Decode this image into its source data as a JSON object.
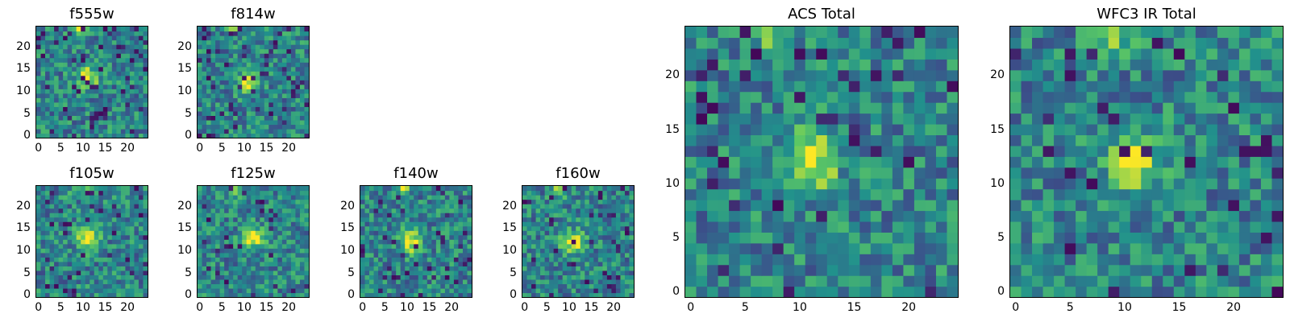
{
  "figure": {
    "colormap": [
      "#440154",
      "#3b528b",
      "#21918c",
      "#5ec962",
      "#fde725"
    ],
    "background": "#ffffff"
  },
  "chart_data": [
    {
      "type": "heatmap",
      "title": "f555w",
      "grid": false,
      "xlim": [
        -0.5,
        24.5
      ],
      "ylim": [
        -0.5,
        24.5
      ],
      "xticks": [
        "0",
        "5",
        "10",
        "15",
        "20"
      ],
      "yticks": [
        "0",
        "5",
        "10",
        "15",
        "20"
      ],
      "features": {
        "peak": [
          11,
          13
        ],
        "hot_spots": [
          [
            9,
            24
          ]
        ],
        "cold_fraction": 0.08
      }
    },
    {
      "type": "heatmap",
      "title": "f814w",
      "grid": false,
      "xlim": [
        -0.5,
        24.5
      ],
      "ylim": [
        -0.5,
        24.5
      ],
      "xticks": [
        "0",
        "5",
        "10",
        "15",
        "20"
      ],
      "yticks": [
        "0",
        "5",
        "10",
        "15",
        "20"
      ],
      "features": {
        "peak": [
          11,
          12
        ],
        "hot_spots": [
          [
            8,
            24
          ]
        ],
        "cold_fraction": 0.1
      }
    },
    {
      "type": "heatmap",
      "title": "f105w",
      "grid": false,
      "xlim": [
        -0.5,
        24.5
      ],
      "ylim": [
        -0.5,
        24.5
      ],
      "xticks": [
        "0",
        "5",
        "10",
        "15",
        "20"
      ],
      "yticks": [
        "0",
        "5",
        "10",
        "15",
        "20"
      ],
      "features": {
        "peak": [
          11,
          13
        ],
        "hot_spots": [
          [
            9,
            24
          ]
        ],
        "cold_fraction": 0.06
      }
    },
    {
      "type": "heatmap",
      "title": "f125w",
      "grid": false,
      "xlim": [
        -0.5,
        24.5
      ],
      "ylim": [
        -0.5,
        24.5
      ],
      "xticks": [
        "0",
        "5",
        "10",
        "15",
        "20"
      ],
      "yticks": [
        "0",
        "5",
        "10",
        "15",
        "20"
      ],
      "features": {
        "peak": [
          12,
          13
        ],
        "hot_spots": [
          [
            8,
            24
          ]
        ],
        "cold_fraction": 0.05
      }
    },
    {
      "type": "heatmap",
      "title": "f140w",
      "grid": false,
      "xlim": [
        -0.5,
        24.5
      ],
      "ylim": [
        -0.5,
        24.5
      ],
      "xticks": [
        "0",
        "5",
        "10",
        "15",
        "20"
      ],
      "yticks": [
        "0",
        "5",
        "10",
        "15",
        "20"
      ],
      "features": {
        "peak": [
          11,
          12
        ],
        "hot_spots": [
          [
            9,
            24
          ]
        ],
        "cold_fraction": 0.06
      }
    },
    {
      "type": "heatmap",
      "title": "f160w",
      "grid": false,
      "xlim": [
        -0.5,
        24.5
      ],
      "ylim": [
        -0.5,
        24.5
      ],
      "xticks": [
        "0",
        "5",
        "10",
        "15",
        "20"
      ],
      "yticks": [
        "0",
        "5",
        "10",
        "15",
        "20"
      ],
      "features": {
        "peak": [
          11,
          12
        ],
        "hot_spots": [
          [
            8,
            24
          ]
        ],
        "cold_fraction": 0.06
      }
    },
    {
      "type": "heatmap",
      "title": "ACS Total",
      "grid": false,
      "xlim": [
        -0.5,
        24.5
      ],
      "ylim": [
        -0.5,
        24.5
      ],
      "xticks": [
        "0",
        "5",
        "10",
        "15",
        "20"
      ],
      "yticks": [
        "0",
        "5",
        "10",
        "15",
        "20"
      ],
      "features": {
        "peak": [
          11,
          12
        ],
        "hot_spots": [
          [
            8,
            24
          ]
        ],
        "cold_fraction": 0.06
      }
    },
    {
      "type": "heatmap",
      "title": "WFC3 IR Total",
      "grid": false,
      "xlim": [
        -0.5,
        24.5
      ],
      "ylim": [
        -0.5,
        24.5
      ],
      "xticks": [
        "0",
        "5",
        "10",
        "15",
        "20"
      ],
      "yticks": [
        "0",
        "5",
        "10",
        "15",
        "20"
      ],
      "features": {
        "peak": [
          11,
          12
        ],
        "hot_spots": [
          [
            9,
            24
          ]
        ],
        "cold_fraction": 0.06
      }
    }
  ]
}
